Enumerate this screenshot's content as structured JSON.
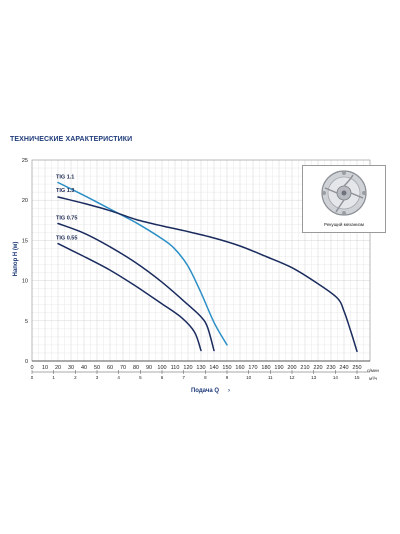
{
  "page_title": "ТЕХНИЧЕСКИЕ ХАРАКТЕРИСТИКИ",
  "inset": {
    "caption": "Рекущий механизм"
  },
  "chart_data": {
    "type": "line",
    "title": "",
    "xlabel": "Подача Q",
    "ylabel": "Напор H (м)",
    "x_unit": "л/мин",
    "x2_unit": "м³/ч",
    "xlim": [
      0,
      260
    ],
    "ylim": [
      0,
      25
    ],
    "x_ticks": [
      0,
      10,
      20,
      30,
      40,
      50,
      60,
      70,
      80,
      90,
      100,
      110,
      120,
      130,
      140,
      150,
      160,
      170,
      180,
      190,
      200,
      210,
      220,
      230,
      240,
      250
    ],
    "x2_ticks": [
      "0",
      "1",
      "2",
      "3",
      "4",
      "5",
      "6",
      "7",
      "8",
      "9",
      "10",
      "11",
      "12",
      "13",
      "14",
      "15"
    ],
    "y_ticks": [
      0,
      5,
      10,
      15,
      20,
      25
    ],
    "grid": true,
    "series": [
      {
        "name": "TIG 1.1",
        "color": "#2b8fc6",
        "x": [
          20,
          40,
          60,
          80,
          100,
          110,
          120,
          130,
          140,
          150
        ],
        "y": [
          22.2,
          20.6,
          18.9,
          17.2,
          15.2,
          13.9,
          11.8,
          8.5,
          4.8,
          2.0
        ]
      },
      {
        "name": "TIG 1.3",
        "color": "#1a2b5e",
        "x": [
          20,
          40,
          60,
          80,
          100,
          120,
          140,
          160,
          180,
          200,
          220,
          235,
          240,
          245,
          250
        ],
        "y": [
          20.4,
          19.6,
          18.7,
          17.6,
          16.8,
          16.1,
          15.3,
          14.3,
          13.0,
          11.6,
          9.6,
          7.8,
          6.2,
          3.8,
          1.2
        ]
      },
      {
        "name": "TIG 0.75",
        "color": "#1a2b5e",
        "x": [
          20,
          40,
          60,
          80,
          100,
          120,
          130,
          135,
          140
        ],
        "y": [
          17.1,
          15.9,
          14.2,
          12.2,
          9.8,
          7.0,
          5.5,
          4.2,
          1.3
        ]
      },
      {
        "name": "TIG 0.55",
        "color": "#1a2b5e",
        "x": [
          20,
          40,
          60,
          80,
          100,
          115,
          125,
          130
        ],
        "y": [
          14.6,
          13.0,
          11.3,
          9.3,
          7.1,
          5.4,
          3.6,
          1.3
        ]
      }
    ]
  }
}
